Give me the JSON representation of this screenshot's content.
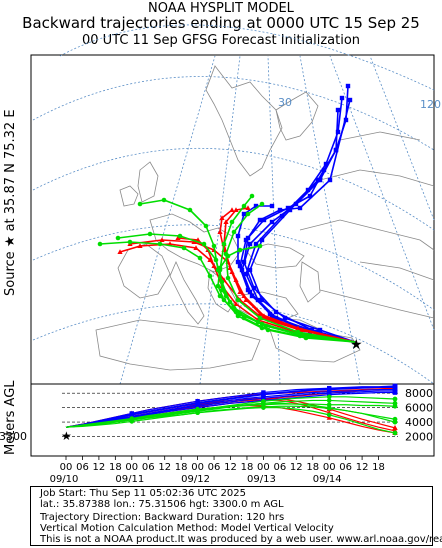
{
  "header": {
    "line1": "NOAA HYSPLIT MODEL",
    "line2": "Backward trajectories ending at 0000 UTC 15 Sep 25",
    "line3": "00 UTC 11 Sep    GFSG  Forecast Initialization"
  },
  "side_labels": {
    "source": "Source ★ at   35.87 N   75.32 E",
    "altitude": "Meters AGL"
  },
  "map": {
    "grid_labels": [
      "30",
      "120"
    ],
    "source_marker": "★"
  },
  "chart_data": {
    "type": "line",
    "title": "",
    "ylabel": "Meters AGL",
    "ylim": [
      0,
      9000
    ],
    "y_ticks": [
      "2000",
      "4000",
      "6000",
      "8000"
    ],
    "start_height_label": "3300",
    "x_tick_hours": [
      "18",
      "12",
      "06",
      "00",
      "18",
      "12",
      "06",
      "00",
      "18",
      "12",
      "06",
      "00",
      "18",
      "12",
      "06",
      "00",
      "18",
      "12",
      "06",
      "00"
    ],
    "x_date_labels": [
      "09/14",
      "09/13",
      "09/12",
      "09/11",
      "09/10"
    ],
    "series": [
      {
        "color": "#ff0000",
        "marker": "triangle",
        "x_hours": [
          0,
          6,
          12,
          18,
          24,
          30,
          36,
          42,
          48,
          54,
          60,
          66,
          72,
          78,
          84,
          90,
          96,
          102,
          108,
          114,
          120
        ],
        "values": [
          3300,
          3600,
          3900,
          4300,
          4700,
          5100,
          5400,
          5800,
          6100,
          6300,
          6600,
          6800,
          7100,
          7400,
          7600,
          7800,
          8000,
          8200,
          8400,
          8500,
          8600
        ]
      },
      {
        "color": "#ff0000",
        "marker": "triangle",
        "x_hours": [
          0,
          6,
          12,
          18,
          24,
          30,
          36,
          42,
          48,
          54,
          60,
          66,
          72,
          78,
          84,
          90,
          96,
          102,
          108,
          114,
          120
        ],
        "values": [
          3300,
          3500,
          3800,
          4100,
          4400,
          4800,
          5200,
          5500,
          5800,
          6000,
          6200,
          6300,
          6200,
          6000,
          5600,
          5100,
          4600,
          4000,
          3400,
          2900,
          2500
        ]
      },
      {
        "color": "#ff0000",
        "marker": "triangle",
        "x_hours": [
          0,
          6,
          12,
          18,
          24,
          30,
          36,
          42,
          48,
          54,
          60,
          66,
          72,
          78,
          84,
          90,
          96,
          102,
          108,
          114,
          120
        ],
        "values": [
          3300,
          3600,
          4000,
          4400,
          4800,
          5200,
          5600,
          6000,
          6300,
          6600,
          6800,
          7000,
          7100,
          7000,
          6600,
          6000,
          5300,
          4600,
          3900,
          3300,
          2800
        ]
      },
      {
        "color": "#ff0000",
        "marker": "triangle",
        "x_hours": [
          0,
          6,
          12,
          18,
          24,
          30,
          36,
          42,
          48,
          54,
          60,
          66,
          72,
          78,
          84,
          90,
          96,
          102,
          108,
          114,
          120
        ],
        "values": [
          3300,
          3700,
          4100,
          4600,
          5000,
          5400,
          5800,
          6200,
          6500,
          6800,
          7000,
          7200,
          7300,
          7200,
          6900,
          6400,
          5800,
          5100,
          4400,
          3800,
          3200
        ]
      },
      {
        "color": "#ff0000",
        "marker": "triangle",
        "x_hours": [
          0,
          6,
          12,
          18,
          24,
          30,
          36,
          42,
          48,
          54,
          60,
          66,
          72,
          78,
          84,
          90,
          96,
          102,
          108,
          114,
          120
        ],
        "values": [
          3300,
          3700,
          4200,
          4700,
          5200,
          5700,
          6100,
          6500,
          6900,
          7200,
          7500,
          7700,
          7900,
          8000,
          8100,
          8200,
          8300,
          8400,
          8500,
          8600,
          8700
        ]
      },
      {
        "color": "#0000ff",
        "marker": "square",
        "x_hours": [
          0,
          6,
          12,
          18,
          24,
          30,
          36,
          42,
          48,
          54,
          60,
          66,
          72,
          78,
          84,
          90,
          96,
          102,
          108,
          114,
          120
        ],
        "values": [
          3300,
          3700,
          4200,
          4700,
          5200,
          5700,
          6100,
          6500,
          6900,
          7200,
          7500,
          7800,
          8100,
          8300,
          8500,
          8600,
          8700,
          8800,
          8900,
          8900,
          9000
        ]
      },
      {
        "color": "#0000ff",
        "marker": "square",
        "x_hours": [
          0,
          6,
          12,
          18,
          24,
          30,
          36,
          42,
          48,
          54,
          60,
          66,
          72,
          78,
          84,
          90,
          96,
          102,
          108,
          114,
          120
        ],
        "values": [
          3300,
          3600,
          4000,
          4500,
          5000,
          5400,
          5800,
          6200,
          6600,
          6900,
          7200,
          7500,
          7800,
          8000,
          8200,
          8400,
          8500,
          8600,
          8700,
          8800,
          8800
        ]
      },
      {
        "color": "#0000ff",
        "marker": "square",
        "x_hours": [
          0,
          6,
          12,
          18,
          24,
          30,
          36,
          42,
          48,
          54,
          60,
          66,
          72,
          78,
          84,
          90,
          96,
          102,
          108,
          114,
          120
        ],
        "values": [
          3300,
          3600,
          4000,
          4400,
          4800,
          5200,
          5600,
          6000,
          6400,
          6700,
          7000,
          7300,
          7500,
          7700,
          7900,
          8100,
          8200,
          8300,
          8400,
          8500,
          8500
        ]
      },
      {
        "color": "#0000ff",
        "marker": "square",
        "x_hours": [
          0,
          6,
          12,
          18,
          24,
          30,
          36,
          42,
          48,
          54,
          60,
          66,
          72,
          78,
          84,
          90,
          96,
          102,
          108,
          114,
          120
        ],
        "values": [
          3300,
          3500,
          3900,
          4300,
          4700,
          5100,
          5500,
          5900,
          6200,
          6500,
          6800,
          7100,
          7300,
          7500,
          7700,
          7900,
          8000,
          8100,
          8200,
          8300,
          8300
        ]
      },
      {
        "color": "#0000ff",
        "marker": "square",
        "x_hours": [
          0,
          6,
          12,
          18,
          24,
          30,
          36,
          42,
          48,
          54,
          60,
          66,
          72,
          78,
          84,
          90,
          96,
          102,
          108,
          114,
          120
        ],
        "values": [
          3300,
          3600,
          4100,
          4600,
          5100,
          5500,
          5900,
          6300,
          6700,
          7000,
          7300,
          7600,
          7900,
          8100,
          8300,
          8500,
          8600,
          8700,
          8800,
          8800,
          8900
        ]
      },
      {
        "color": "#0000ff",
        "marker": "square",
        "x_hours": [
          0,
          6,
          12,
          18,
          24,
          30,
          36,
          42,
          48,
          54,
          60,
          66,
          72,
          78,
          84,
          90,
          96,
          102,
          108,
          114,
          120
        ],
        "values": [
          3300,
          3500,
          3800,
          4200,
          4600,
          5000,
          5400,
          5700,
          6000,
          6300,
          6600,
          6800,
          7000,
          7200,
          7400,
          7600,
          7800,
          7900,
          8000,
          8100,
          8100
        ]
      },
      {
        "color": "#00dd00",
        "marker": "circle",
        "x_hours": [
          0,
          6,
          12,
          18,
          24,
          30,
          36,
          42,
          48,
          54,
          60,
          66,
          72,
          78,
          84,
          90,
          96,
          102,
          108,
          114,
          120
        ],
        "values": [
          3300,
          3500,
          3800,
          4100,
          4400,
          4700,
          5000,
          5300,
          5600,
          5900,
          6100,
          6300,
          6400,
          6500,
          6500,
          6500,
          6400,
          6400,
          6300,
          6300,
          6200
        ]
      },
      {
        "color": "#00dd00",
        "marker": "circle",
        "x_hours": [
          0,
          6,
          12,
          18,
          24,
          30,
          36,
          42,
          48,
          54,
          60,
          66,
          72,
          78,
          84,
          90,
          96,
          102,
          108,
          114,
          120
        ],
        "values": [
          3300,
          3500,
          3700,
          4000,
          4300,
          4600,
          4900,
          5200,
          5500,
          5800,
          6100,
          6400,
          6600,
          6800,
          6900,
          7000,
          7000,
          6900,
          6800,
          6700,
          6600
        ]
      },
      {
        "color": "#00dd00",
        "marker": "circle",
        "x_hours": [
          0,
          6,
          12,
          18,
          24,
          30,
          36,
          42,
          48,
          54,
          60,
          66,
          72,
          78,
          84,
          90,
          96,
          102,
          108,
          114,
          120
        ],
        "values": [
          3300,
          3500,
          3800,
          4100,
          4400,
          4800,
          5100,
          5400,
          5700,
          6000,
          6200,
          6400,
          6600,
          6600,
          6500,
          6300,
          6000,
          5600,
          5200,
          4600,
          4000
        ]
      },
      {
        "color": "#00dd00",
        "marker": "circle",
        "x_hours": [
          0,
          6,
          12,
          18,
          24,
          30,
          36,
          42,
          48,
          54,
          60,
          66,
          72,
          78,
          84,
          90,
          96,
          102,
          108,
          114,
          120
        ],
        "values": [
          3300,
          3500,
          3700,
          4000,
          4300,
          4600,
          4800,
          5000,
          5300,
          5500,
          5700,
          5900,
          6000,
          6000,
          5800,
          5500,
          5000,
          4400,
          3700,
          3000,
          2500
        ]
      },
      {
        "color": "#00dd00",
        "marker": "circle",
        "x_hours": [
          0,
          6,
          12,
          18,
          24,
          30,
          36,
          42,
          48,
          54,
          60,
          66,
          72,
          78,
          84,
          90,
          96,
          102,
          108,
          114,
          120
        ],
        "values": [
          3300,
          3600,
          3900,
          4200,
          4500,
          4900,
          5200,
          5500,
          5800,
          6000,
          6300,
          6600,
          6900,
          7100,
          7300,
          7400,
          7500,
          7500,
          7400,
          7300,
          7200
        ]
      },
      {
        "color": "#00dd00",
        "marker": "circle",
        "x_hours": [
          0,
          6,
          12,
          18,
          24,
          30,
          36,
          42,
          48,
          54,
          60,
          66,
          72,
          78,
          84,
          90,
          96,
          102,
          108,
          114,
          120
        ],
        "values": [
          3300,
          3400,
          3600,
          3800,
          4100,
          4400,
          4700,
          5000,
          5300,
          5600,
          5800,
          6000,
          6100,
          6200,
          6200,
          6100,
          5900,
          5600,
          5200,
          4800,
          4400
        ]
      }
    ]
  },
  "footer": {
    "line1": "Job Start: Thu Sep 11 05:02:36 UTC 2025",
    "line2": "lat.: 35.87388   lon.: 75.31506    hgt: 3300.0 m AGL",
    "line3": "Trajectory Direction: Backward        Duration: 120 hrs",
    "line4": "Vertical Motion Calculation Method: Model Vertical Velocity",
    "line5": "This is not a NOAA product.It was produced by a web user. www.arl.noaa.gov/ready"
  },
  "colors": {
    "red": "#ff0000",
    "blue": "#0000ff",
    "green": "#00dd00",
    "map_lines": "#888888",
    "graticule": "#5b8fc7"
  }
}
